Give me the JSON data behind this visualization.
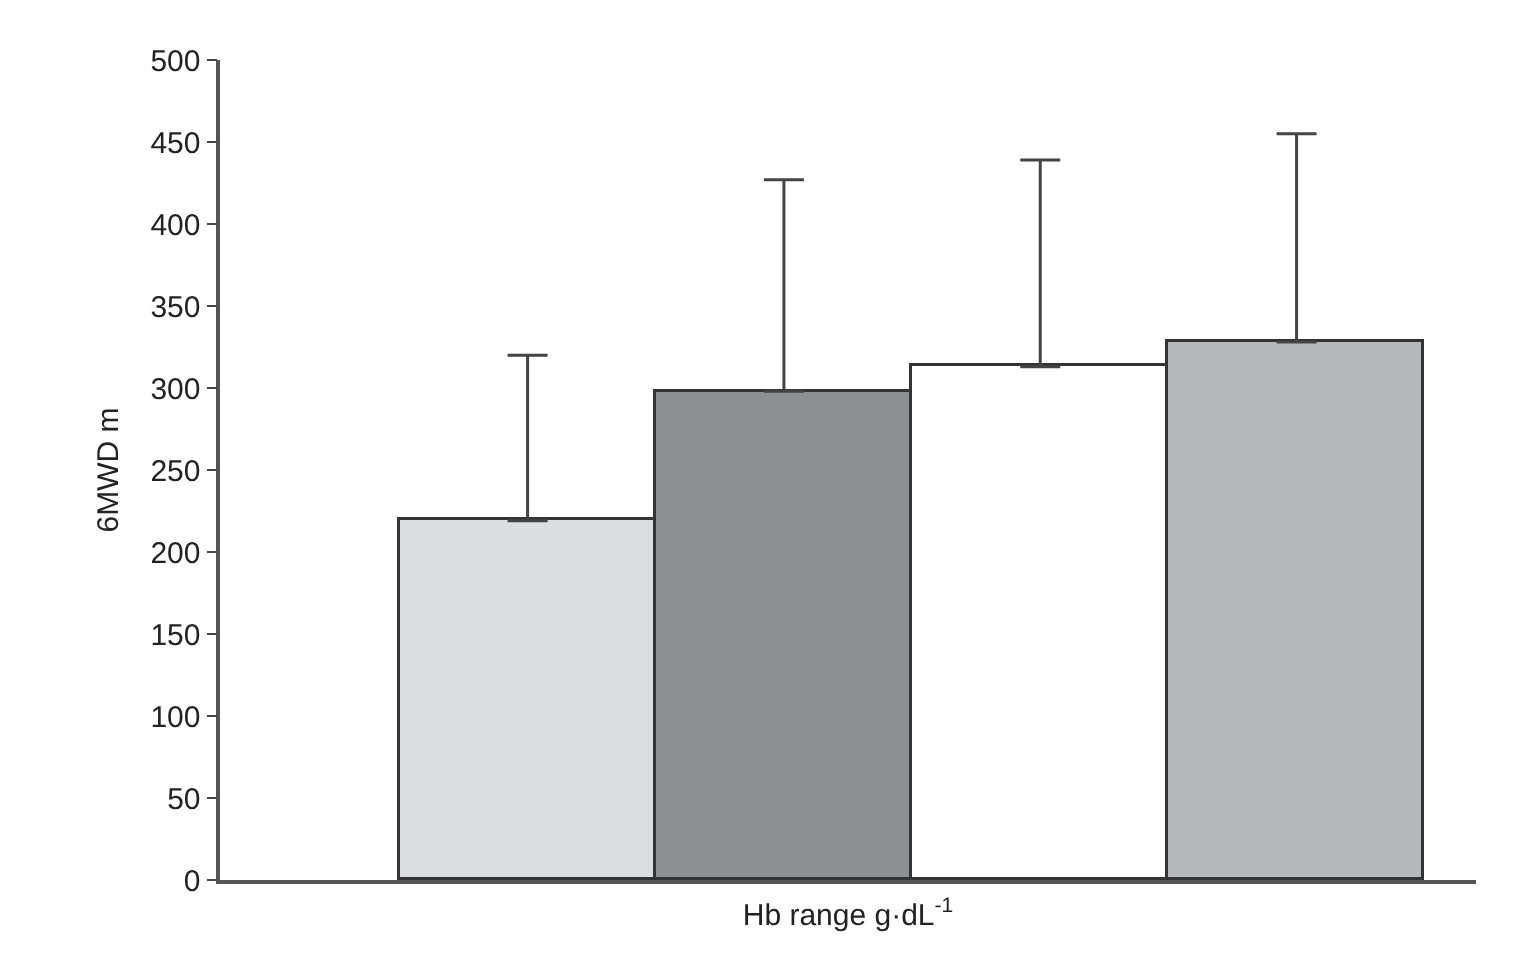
{
  "chart_data": {
    "type": "bar",
    "xlabel": "Hb range g·dL$^{-1}$",
    "ylabel": "6MWD m",
    "categories": [
      null,
      null,
      null,
      null
    ],
    "values": [
      219,
      298,
      313,
      328
    ],
    "colors": [
      "#dcdde0",
      "#8d8f92",
      "#ffffff",
      "#b7b8ba"
    ],
    "errors": [
      [
        219,
        320
      ],
      [
        298,
        427
      ],
      [
        313,
        439
      ],
      [
        328,
        455
      ]
    ],
    "ylim": [
      0,
      500
    ],
    "yticks": [
      0,
      50,
      100,
      150,
      200,
      250,
      300,
      350,
      400,
      450,
      500
    ],
    "grid": false
  }
}
